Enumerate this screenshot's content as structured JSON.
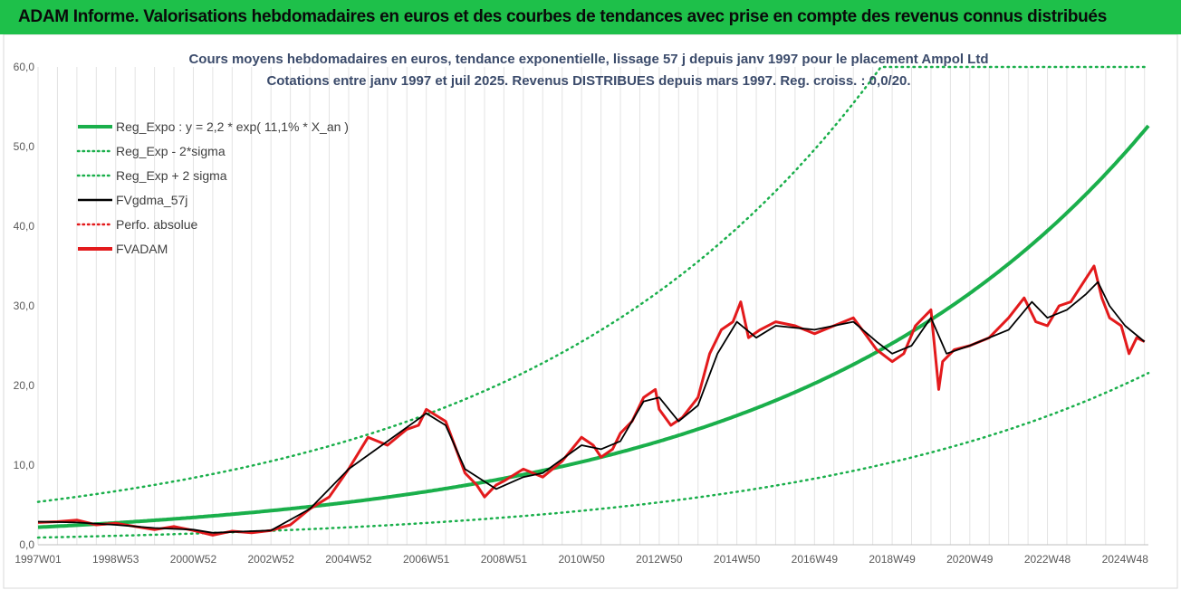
{
  "header": {
    "title": "ADAM Informe. Valorisations hebdomadaires en euros et des courbes de tendances avec prise en compte des revenus connus distribués"
  },
  "chart_data": {
    "type": "line",
    "title": "Cours moyens hebdomadaires en euros, tendance exponentielle, lissage 57 j depuis janv 1997 pour le placement Ampol Ltd",
    "subtitle": "Cotations entre janv 1997 et juil 2025. Revenus DISTRIBUES depuis mars 1997. Reg. croiss. : 0,0/20.",
    "xlabel": "",
    "ylabel": "",
    "ylim": [
      0,
      60
    ],
    "yticks": [
      "0,0",
      "10,0",
      "20,0",
      "30,0",
      "40,0",
      "50,0",
      "60,0"
    ],
    "xlim": [
      1997.0,
      2025.6
    ],
    "xticks": [
      {
        "label": "1997W01",
        "x": 1997.0
      },
      {
        "label": "1998W53",
        "x": 1999.0
      },
      {
        "label": "2000W52",
        "x": 2001.0
      },
      {
        "label": "2002W52",
        "x": 2003.0
      },
      {
        "label": "2004W52",
        "x": 2005.0
      },
      {
        "label": "2006W51",
        "x": 2007.0
      },
      {
        "label": "2008W51",
        "x": 2009.0
      },
      {
        "label": "2010W50",
        "x": 2011.0
      },
      {
        "label": "2012W50",
        "x": 2013.0
      },
      {
        "label": "2014W50",
        "x": 2015.0
      },
      {
        "label": "2016W49",
        "x": 2017.0
      },
      {
        "label": "2018W49",
        "x": 2019.0
      },
      {
        "label": "2020W49",
        "x": 2021.0
      },
      {
        "label": "2022W48",
        "x": 2023.0
      },
      {
        "label": "2024W48",
        "x": 2025.0
      }
    ],
    "grid": "vertical",
    "legend_position": "top-left",
    "legend": [
      {
        "label": "Reg_Expo : y = 2,2 * exp( 11,1% *  X_an )",
        "color": "#1aaf4b",
        "style": "solid-thick"
      },
      {
        "label": "Reg_Exp - 2*sigma",
        "color": "#1aaf4b",
        "style": "dotted"
      },
      {
        "label": "Reg_Exp + 2 sigma",
        "color": "#1aaf4b",
        "style": "dotted"
      },
      {
        "label": "FVgdma_57j",
        "color": "#000000",
        "style": "solid"
      },
      {
        "label": "Perfo. absolue",
        "color": "#e31a1c",
        "style": "dotted"
      },
      {
        "label": "FVADAM",
        "color": "#e31a1c",
        "style": "solid-thick"
      }
    ],
    "regression": {
      "a": 2.2,
      "b": 0.111,
      "lower_factor": 0.41,
      "upper_factor": 2.45
    },
    "series": [
      {
        "name": "FVADAM",
        "color": "#e31a1c",
        "x": [
          1997.0,
          1997.5,
          1998.0,
          1998.5,
          1999.0,
          1999.5,
          2000.0,
          2000.5,
          2001.0,
          2001.5,
          2002.0,
          2002.5,
          2003.0,
          2003.5,
          2004.0,
          2004.5,
          2005.0,
          2005.5,
          2006.0,
          2006.5,
          2006.8,
          2007.0,
          2007.5,
          2008.0,
          2008.3,
          2008.5,
          2008.8,
          2009.0,
          2009.5,
          2010.0,
          2010.5,
          2011.0,
          2011.3,
          2011.5,
          2011.8,
          2012.0,
          2012.3,
          2012.6,
          2012.9,
          2013.0,
          2013.3,
          2013.6,
          2014.0,
          2014.3,
          2014.6,
          2014.9,
          2015.1,
          2015.3,
          2015.6,
          2016.0,
          2016.5,
          2017.0,
          2017.5,
          2018.0,
          2018.3,
          2018.6,
          2019.0,
          2019.3,
          2019.6,
          2020.0,
          2020.2,
          2020.3,
          2020.6,
          2021.0,
          2021.5,
          2022.0,
          2022.4,
          2022.7,
          2023.0,
          2023.3,
          2023.6,
          2024.0,
          2024.2,
          2024.4,
          2024.6,
          2024.9,
          2025.1,
          2025.3,
          2025.5
        ],
        "y": [
          2.8,
          2.9,
          3.1,
          2.5,
          2.7,
          2.3,
          1.9,
          2.3,
          1.8,
          1.2,
          1.7,
          1.5,
          1.8,
          2.5,
          4.5,
          6.0,
          9.5,
          13.5,
          12.5,
          14.5,
          15.0,
          17.0,
          15.5,
          9.0,
          7.5,
          6.0,
          7.5,
          8.0,
          9.5,
          8.5,
          10.5,
          13.5,
          12.5,
          11.0,
          12.0,
          14.0,
          15.5,
          18.5,
          19.5,
          17.0,
          15.0,
          16.0,
          18.5,
          24.0,
          27.0,
          28.0,
          30.5,
          26.0,
          27.0,
          28.0,
          27.5,
          26.5,
          27.5,
          28.5,
          26.5,
          24.5,
          23.0,
          24.0,
          27.5,
          29.5,
          19.5,
          23.0,
          24.5,
          25.0,
          26.0,
          28.5,
          31.0,
          28.0,
          27.5,
          30.0,
          30.5,
          33.5,
          35.0,
          31.0,
          28.5,
          27.5,
          24.0,
          26.0,
          25.5
        ]
      },
      {
        "name": "FVgdma_57j",
        "color": "#000000",
        "x": [
          1997.0,
          1998.0,
          1999.0,
          2000.0,
          2001.0,
          2001.5,
          2002.0,
          2003.0,
          2004.0,
          2005.0,
          2006.0,
          2007.0,
          2007.5,
          2008.0,
          2008.8,
          2009.5,
          2010.0,
          2011.0,
          2011.5,
          2012.0,
          2012.6,
          2013.0,
          2013.5,
          2014.0,
          2014.5,
          2015.0,
          2015.5,
          2016.0,
          2017.0,
          2018.0,
          2018.6,
          2019.0,
          2019.5,
          2020.0,
          2020.4,
          2021.0,
          2022.0,
          2022.6,
          2023.0,
          2023.5,
          2024.0,
          2024.3,
          2024.6,
          2025.0,
          2025.5
        ],
        "y": [
          2.9,
          2.8,
          2.5,
          2.1,
          1.9,
          1.5,
          1.6,
          1.8,
          4.5,
          9.5,
          13.0,
          16.5,
          15.0,
          9.5,
          7.0,
          8.5,
          9.0,
          12.5,
          12.0,
          13.0,
          18.0,
          18.5,
          15.5,
          17.5,
          24.0,
          28.0,
          26.0,
          27.5,
          27.0,
          28.0,
          25.5,
          24.0,
          25.0,
          28.5,
          24.0,
          25.0,
          27.0,
          30.5,
          28.5,
          29.5,
          31.5,
          33.0,
          30.0,
          27.5,
          25.5
        ]
      }
    ]
  }
}
